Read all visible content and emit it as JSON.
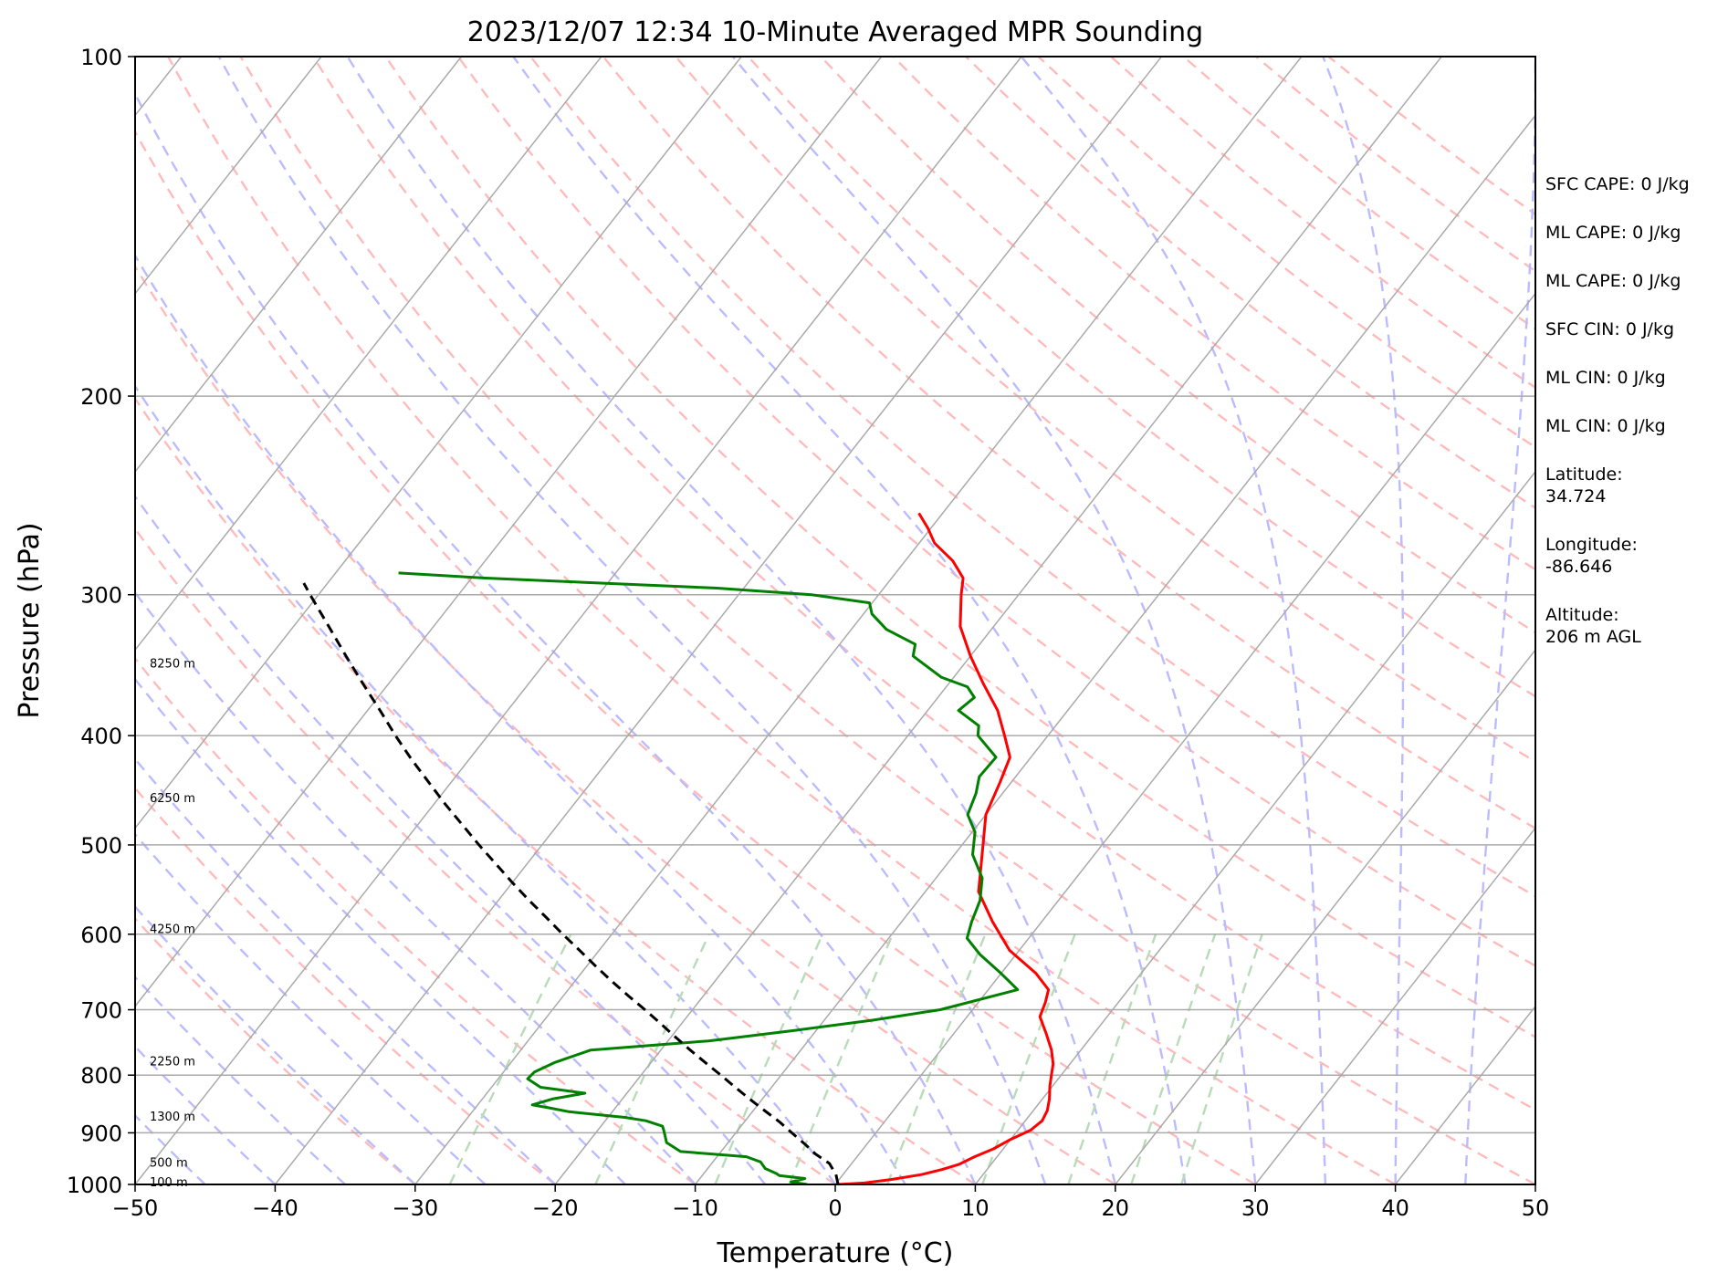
{
  "chart_data": {
    "type": "line",
    "subtype": "skew-T log-P diagram",
    "title": "2023/12/07 12:34 10-Minute Averaged MPR Sounding",
    "xlabel": "Temperature (°C)",
    "ylabel": "Pressure (hPa)",
    "xlim": [
      -50,
      50
    ],
    "ylim": [
      1000,
      100
    ],
    "y_scale": "log",
    "x_ticks": [
      "−50",
      "−40",
      "−30",
      "−20",
      "−10",
      "0",
      "10",
      "20",
      "30",
      "40",
      "50"
    ],
    "y_ticks": [
      "100",
      "200",
      "300",
      "400",
      "500",
      "600",
      "700",
      "800",
      "900",
      "1000"
    ],
    "grid": true,
    "colors": {
      "temperature": "#ff0000",
      "dewpoint": "#008000",
      "parcel": "#000000",
      "isotherm": "#aaaaaa",
      "dry_adiabat": "#ffbbbb",
      "moist_adiabat": "#bbbbff",
      "mixing_ratio": "#b7dcb7",
      "isobar": "#aaaaaa"
    },
    "height_labels": [
      {
        "text": "100 m",
        "p": 994
      },
      {
        "text": "500 m",
        "p": 955
      },
      {
        "text": "1300 m",
        "p": 870
      },
      {
        "text": "2250 m",
        "p": 777
      },
      {
        "text": "4250 m",
        "p": 593
      },
      {
        "text": "6250 m",
        "p": 454
      },
      {
        "text": "8250 m",
        "p": 345
      }
    ],
    "series": [
      {
        "kind": "temperature",
        "points": [
          [
            1000,
            0.2
          ],
          [
            997,
            2.0
          ],
          [
            990,
            3.7
          ],
          [
            980,
            5.6
          ],
          [
            970,
            6.8
          ],
          [
            960,
            7.7
          ],
          [
            945,
            8.4
          ],
          [
            930,
            9.3
          ],
          [
            912,
            10.0
          ],
          [
            895,
            10.9
          ],
          [
            878,
            11.2
          ],
          [
            860,
            11.0
          ],
          [
            840,
            10.5
          ],
          [
            818,
            9.8
          ],
          [
            800,
            9.3
          ],
          [
            782,
            8.8
          ],
          [
            760,
            7.9
          ],
          [
            735,
            6.6
          ],
          [
            710,
            5.2
          ],
          [
            690,
            4.8
          ],
          [
            672,
            4.3
          ],
          [
            650,
            2.5
          ],
          [
            620,
            -0.7
          ],
          [
            585,
            -3.5
          ],
          [
            550,
            -6.2
          ],
          [
            500,
            -8.5
          ],
          [
            470,
            -10.0
          ],
          [
            440,
            -10.8
          ],
          [
            418,
            -11.5
          ],
          [
            400,
            -13.1
          ],
          [
            380,
            -15.0
          ],
          [
            360,
            -17.5
          ],
          [
            340,
            -20.0
          ],
          [
            320,
            -22.4
          ],
          [
            300,
            -24.1
          ],
          [
            290,
            -24.9
          ],
          [
            280,
            -26.6
          ],
          [
            270,
            -28.9
          ],
          [
            262,
            -30.2
          ],
          [
            254,
            -31.7
          ]
        ]
      },
      {
        "kind": "dewpoint",
        "points": [
          [
            1000,
            -2.0
          ],
          [
            995,
            -3.3
          ],
          [
            988,
            -2.5
          ],
          [
            982,
            -4.5
          ],
          [
            978,
            -4.8
          ],
          [
            968,
            -5.9
          ],
          [
            955,
            -6.6
          ],
          [
            945,
            -7.9
          ],
          [
            935,
            -12.9
          ],
          [
            918,
            -14.4
          ],
          [
            905,
            -14.9
          ],
          [
            895,
            -15.3
          ],
          [
            888,
            -15.6
          ],
          [
            878,
            -17.1
          ],
          [
            872,
            -18.8
          ],
          [
            862,
            -23.1
          ],
          [
            855,
            -24.8
          ],
          [
            850,
            -26.1
          ],
          [
            840,
            -25.0
          ],
          [
            830,
            -23.0
          ],
          [
            820,
            -26.5
          ],
          [
            806,
            -27.9
          ],
          [
            795,
            -27.8
          ],
          [
            780,
            -26.9
          ],
          [
            760,
            -25.0
          ],
          [
            746,
            -17.1
          ],
          [
            730,
            -11.5
          ],
          [
            715,
            -6.5
          ],
          [
            700,
            -2.3
          ],
          [
            672,
            2.1
          ],
          [
            650,
            0.0
          ],
          [
            625,
            -2.6
          ],
          [
            605,
            -4.4
          ],
          [
            585,
            -5.0
          ],
          [
            560,
            -5.6
          ],
          [
            535,
            -6.7
          ],
          [
            510,
            -8.7
          ],
          [
            487,
            -9.8
          ],
          [
            470,
            -11.3
          ],
          [
            450,
            -11.9
          ],
          [
            435,
            -12.6
          ],
          [
            418,
            -12.5
          ],
          [
            400,
            -15.0
          ],
          [
            392,
            -15.5
          ],
          [
            380,
            -17.8
          ],
          [
            370,
            -17.4
          ],
          [
            362,
            -18.5
          ],
          [
            355,
            -20.9
          ],
          [
            340,
            -24.1
          ],
          [
            332,
            -24.6
          ],
          [
            322,
            -27.5
          ],
          [
            312,
            -29.4
          ],
          [
            305,
            -30.2
          ],
          [
            300,
            -34.8
          ],
          [
            296,
            -41.9
          ],
          [
            290,
            -59.0
          ],
          [
            287,
            -65.5
          ]
        ]
      },
      {
        "kind": "parcel",
        "points": [
          [
            1000,
            0.2
          ],
          [
            980,
            -0.5
          ],
          [
            958,
            -1.6
          ],
          [
            940,
            -3.1
          ],
          [
            920,
            -4.5
          ],
          [
            900,
            -6.0
          ],
          [
            880,
            -7.5
          ],
          [
            860,
            -9.2
          ],
          [
            840,
            -10.9
          ],
          [
            820,
            -12.6
          ],
          [
            800,
            -14.3
          ],
          [
            780,
            -16.1
          ],
          [
            760,
            -17.9
          ],
          [
            740,
            -19.7
          ],
          [
            720,
            -21.5
          ],
          [
            700,
            -23.4
          ],
          [
            680,
            -25.4
          ],
          [
            660,
            -27.4
          ],
          [
            640,
            -29.4
          ],
          [
            620,
            -31.4
          ],
          [
            600,
            -33.5
          ],
          [
            580,
            -35.6
          ],
          [
            560,
            -37.8
          ],
          [
            540,
            -40.0
          ],
          [
            520,
            -42.2
          ],
          [
            500,
            -44.5
          ],
          [
            480,
            -46.8
          ],
          [
            460,
            -49.2
          ],
          [
            440,
            -51.6
          ],
          [
            420,
            -54.1
          ],
          [
            400,
            -56.6
          ],
          [
            380,
            -59.1
          ],
          [
            360,
            -61.8
          ],
          [
            340,
            -64.6
          ],
          [
            320,
            -67.5
          ],
          [
            300,
            -70.6
          ],
          [
            293,
            -71.7
          ]
        ]
      }
    ]
  },
  "info_panel": [
    "SFC CAPE: 0 J/kg",
    "ML CAPE: 0 J/kg",
    "ML CAPE: 0 J/kg",
    "SFC CIN: 0 J/kg",
    "ML CIN: 0 J/kg",
    "ML CIN: 0 J/kg",
    "Latitude:\n34.724",
    "Longitude:\n-86.646",
    "Altitude:\n206 m AGL"
  ]
}
